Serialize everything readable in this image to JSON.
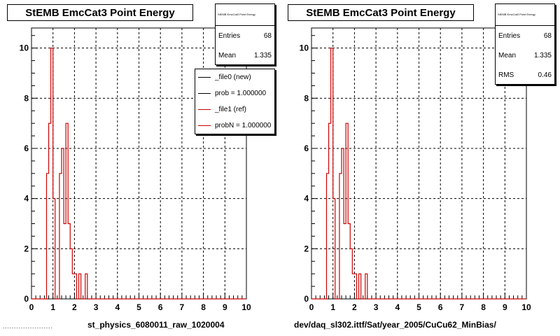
{
  "chart_data": [
    {
      "type": "histogram",
      "title": "StEMB EmcCat3 Point Energy",
      "xlabel": "st_physics_6080011_raw_1020004",
      "xlim": [
        0,
        10
      ],
      "ylim": [
        0,
        10.8
      ],
      "x_ticks": [
        "0",
        "1",
        "2",
        "3",
        "4",
        "5",
        "6",
        "7",
        "8",
        "9",
        "10"
      ],
      "y_ticks": [
        "0",
        "2",
        "4",
        "6",
        "8",
        "10"
      ],
      "grid": true,
      "bin_width": 0.1,
      "x_start": 0,
      "values": [
        0,
        0,
        0,
        0,
        0,
        0,
        0,
        5,
        7,
        10,
        4,
        0,
        0,
        5,
        6,
        3,
        7,
        3,
        2,
        1,
        1,
        0,
        1,
        0,
        0,
        1,
        0,
        0,
        0,
        0,
        0,
        0,
        0,
        0,
        0,
        0,
        0,
        0,
        0,
        0,
        0,
        0,
        0,
        0,
        0,
        0,
        0,
        0,
        0,
        0,
        0,
        0,
        0,
        0,
        0,
        0,
        0,
        0,
        0,
        0,
        0,
        0,
        0,
        0,
        0,
        0,
        0,
        0,
        0,
        0,
        0,
        0,
        0,
        0,
        0,
        0,
        0,
        0,
        0,
        0,
        0,
        0,
        0,
        0,
        0,
        0,
        0,
        0,
        0,
        0,
        0,
        0,
        0,
        0,
        0,
        0,
        0,
        0,
        0,
        0
      ],
      "series_color": "#cc0000",
      "stats": {
        "header": "StEMB EmcCat3 Point Energy",
        "entries_label": "Entries",
        "entries": "68",
        "mean_label": "Mean",
        "mean": "1.335"
      },
      "legend": [
        {
          "label": "_file0 (new)",
          "color": "#000000"
        },
        {
          "label": "prob = 1.000000",
          "color": "#000000"
        },
        {
          "label": "_file1 (ref)",
          "color": "#cc0000"
        },
        {
          "label": "probN = 1.000000",
          "color": "#cc0000"
        }
      ]
    },
    {
      "type": "histogram",
      "title": "StEMB EmcCat3 Point Energy",
      "xlabel": "dev/daq_sl302.ittf/Sat/year_2005/CuCu62_MinBias/",
      "xlim": [
        0,
        10
      ],
      "ylim": [
        0,
        10.8
      ],
      "x_ticks": [
        "0",
        "1",
        "2",
        "3",
        "4",
        "5",
        "6",
        "7",
        "8",
        "9",
        "10"
      ],
      "y_ticks": [
        "0",
        "2",
        "4",
        "6",
        "8",
        "10"
      ],
      "grid": true,
      "bin_width": 0.1,
      "x_start": 0,
      "values": [
        0,
        0,
        0,
        0,
        0,
        0,
        0,
        5,
        7,
        10,
        4,
        0,
        0,
        5,
        6,
        3,
        7,
        3,
        2,
        1,
        1,
        0,
        1,
        0,
        0,
        1,
        0,
        0,
        0,
        0,
        0,
        0,
        0,
        0,
        0,
        0,
        0,
        0,
        0,
        0,
        0,
        0,
        0,
        0,
        0,
        0,
        0,
        0,
        0,
        0,
        0,
        0,
        0,
        0,
        0,
        0,
        0,
        0,
        0,
        0,
        0,
        0,
        0,
        0,
        0,
        0,
        0,
        0,
        0,
        0,
        0,
        0,
        0,
        0,
        0,
        0,
        0,
        0,
        0,
        0,
        0,
        0,
        0,
        0,
        0,
        0,
        0,
        0,
        0,
        0,
        0,
        0,
        0,
        0,
        0,
        0,
        0,
        0,
        0,
        0
      ],
      "series_color": "#cc0000",
      "stats": {
        "header": "StEMB EmcCat3 Point Energy",
        "entries_label": "Entries",
        "entries": "68",
        "mean_label": "Mean",
        "mean": "1.335",
        "rms_label": "RMS",
        "rms": "0.46"
      }
    }
  ],
  "footer_small_text": "- - - - -  - - -  - -  - - - - - - - -  - - - -"
}
